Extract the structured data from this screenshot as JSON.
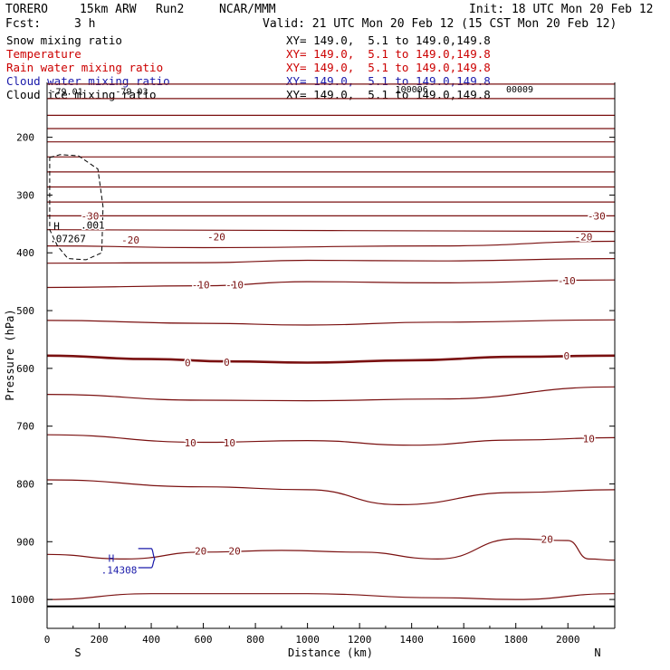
{
  "header": {
    "model": "TORERO",
    "grid": "15km ARW",
    "run": "Run2",
    "org": "NCAR/MMM",
    "init": "Init: 18 UTC Mon 20 Feb 12",
    "fcst_label": "Fcst:",
    "fcst_value": "3 h",
    "valid": "Valid: 21 UTC Mon 20 Feb 12 (15 CST Mon 20 Feb 12)"
  },
  "legend": [
    {
      "name": "Snow mixing ratio",
      "xy": "XY= 149.0,  5.1 to 149.0,149.8",
      "color": "#000000"
    },
    {
      "name": "Temperature",
      "xy": "XY= 149.0,  5.1 to 149.0,149.8",
      "color": "#cc0000"
    },
    {
      "name": "Rain water mixing ratio",
      "xy": "XY= 149.0,  5.1 to 149.0,149.8",
      "color": "#cc0000"
    },
    {
      "name": "Cloud water mixing ratio",
      "xy": "XY= 149.0,  5.1 to 149.0,149.8",
      "color": "#1a1aaa"
    },
    {
      "name": "Cloud ice mixing ratio",
      "xy": "XY= 149.0,  5.1 to 149.0,149.8",
      "color": "#000000"
    }
  ],
  "chart_data": {
    "type": "cross-section contour",
    "xlabel": "Distance (km)",
    "ylabel": "Pressure (hPa)",
    "x_ticks": [
      0,
      200,
      400,
      600,
      800,
      1000,
      1200,
      1400,
      1600,
      1800,
      2000
    ],
    "xlim": [
      0,
      2180
    ],
    "y_ticks": [
      200,
      300,
      400,
      500,
      600,
      700,
      800,
      900,
      1000
    ],
    "ylim": [
      1050,
      105
    ],
    "endpoint_left": "S",
    "endpoint_right": "N",
    "surface_pressure": 1012,
    "temperature_isotherms": [
      {
        "x": [
          0,
          2180
        ],
        "p": [
          108,
          108
        ]
      },
      {
        "x": [
          0,
          2180
        ],
        "p": [
          133,
          133
        ]
      },
      {
        "x": [
          0,
          2180
        ],
        "p": [
          162,
          162
        ]
      },
      {
        "x": [
          0,
          2180
        ],
        "p": [
          185,
          185
        ]
      },
      {
        "x": [
          0,
          2180
        ],
        "p": [
          208,
          208
        ]
      },
      {
        "x": [
          0,
          2180
        ],
        "p": [
          234,
          234
        ]
      },
      {
        "x": [
          0,
          2180
        ],
        "p": [
          260,
          260
        ]
      },
      {
        "x": [
          0,
          2180
        ],
        "p": [
          286,
          286
        ]
      },
      {
        "x": [
          0,
          2180
        ],
        "p": [
          312,
          312
        ]
      },
      {
        "x": [
          0,
          2180
        ],
        "p": [
          336,
          336
        ]
      },
      {
        "x": [
          0,
          2180
        ],
        "p": [
          360,
          363
        ]
      },
      {
        "x": [
          0,
          600,
          1500,
          2180
        ],
        "p": [
          388,
          391,
          388,
          380
        ]
      },
      {
        "x": [
          0,
          600,
          1000,
          1500,
          2180
        ],
        "p": [
          418,
          417,
          413,
          414,
          410
        ]
      },
      {
        "x": [
          0,
          600,
          1000,
          1500,
          2180
        ],
        "p": [
          460,
          457,
          450,
          452,
          447
        ]
      },
      {
        "x": [
          0,
          600,
          1000,
          1500,
          2180
        ],
        "p": [
          517,
          522,
          525,
          520,
          516
        ]
      },
      {
        "x": [
          0,
          400,
          700,
          1000,
          1400,
          1800,
          2180
        ],
        "p": [
          578,
          584,
          588,
          590,
          586,
          580,
          578
        ]
      },
      {
        "x": [
          0,
          600,
          1000,
          1500,
          2180
        ],
        "p": [
          645,
          655,
          656,
          653,
          632
        ]
      },
      {
        "x": [
          0,
          600,
          1000,
          1400,
          1800,
          2180
        ],
        "p": [
          715,
          728,
          725,
          733,
          724,
          720
        ]
      },
      {
        "x": [
          0,
          600,
          1000,
          1350,
          1800,
          2180
        ],
        "p": [
          793,
          805,
          810,
          836,
          815,
          810
        ]
      },
      {
        "x": [
          0,
          300,
          600,
          900,
          1200,
          1500,
          1800,
          2000,
          2080,
          2180
        ],
        "p": [
          922,
          930,
          918,
          915,
          918,
          930,
          895,
          898,
          930,
          932
        ]
      },
      {
        "x": [
          0,
          400,
          1000,
          1500,
          1800,
          2180
        ],
        "p": [
          1000,
          990,
          990,
          997,
          1000,
          990
        ]
      }
    ],
    "temperature_labels": [
      {
        "text": "-30",
        "x": 165,
        "p": 336
      },
      {
        "text": "-30",
        "x": 2110,
        "p": 336
      },
      {
        "text": "-20",
        "x": 320,
        "p": 378
      },
      {
        "text": "-20",
        "x": 650,
        "p": 372
      },
      {
        "text": "-20",
        "x": 2060,
        "p": 372
      },
      {
        "text": "-10",
        "x": 590,
        "p": 455
      },
      {
        "text": "-10",
        "x": 720,
        "p": 455
      },
      {
        "text": "-10",
        "x": 1995,
        "p": 448
      },
      {
        "text": "0",
        "x": 540,
        "p": 590
      },
      {
        "text": "0",
        "x": 690,
        "p": 589
      },
      {
        "text": "0",
        "x": 1995,
        "p": 578
      },
      {
        "text": "10",
        "x": 550,
        "p": 729
      },
      {
        "text": "10",
        "x": 700,
        "p": 729
      },
      {
        "text": "10",
        "x": 2080,
        "p": 722
      },
      {
        "text": "20",
        "x": 590,
        "p": 916
      },
      {
        "text": "20",
        "x": 720,
        "p": 916
      },
      {
        "text": "20",
        "x": 1920,
        "p": 896
      }
    ],
    "ice_contour": {
      "x": [
        10,
        50,
        120,
        195,
        215,
        210,
        150,
        80,
        40,
        10
      ],
      "p": [
        235,
        230,
        232,
        255,
        320,
        400,
        412,
        410,
        388,
        360
      ],
      "label": ".001",
      "label_x": 175,
      "label_p": 352
    },
    "ice_max": {
      "mark": "H",
      "value": ".07267",
      "x": 25,
      "p": 366
    },
    "ice_marks": [
      {
        "text": "-79.01",
        "x": 75,
        "p": 120
      },
      {
        "text": "-79.03",
        "x": 325,
        "p": 120
      },
      {
        "text": "100006",
        "x": 1400,
        "p": 116
      },
      {
        "text": "00009",
        "x": 1815,
        "p": 116
      }
    ],
    "cloud_water_contour": {
      "x": [
        350,
        400,
        415,
        400,
        350
      ],
      "p": [
        912,
        912,
        930,
        945,
        945
      ]
    },
    "cloud_water_max": {
      "mark": "H",
      "value": ".14308",
      "x": 235,
      "p": 938
    }
  }
}
